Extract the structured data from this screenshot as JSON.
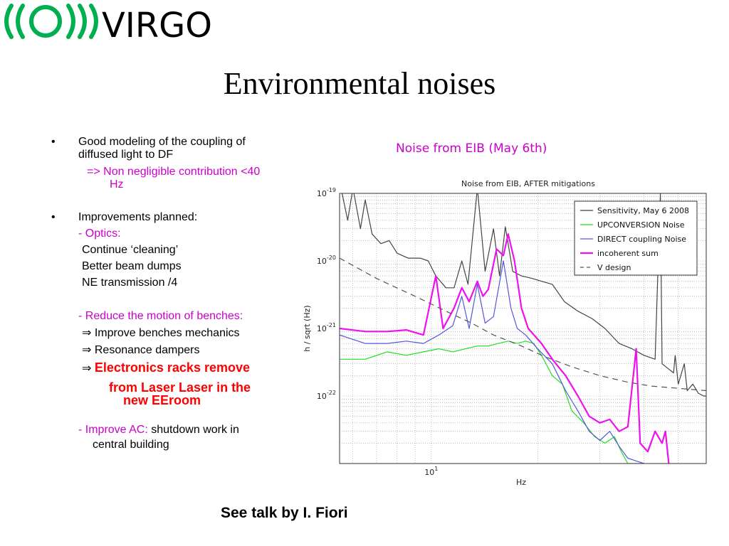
{
  "logo": {
    "text": "VIRGO",
    "color": "#00b050"
  },
  "title": "Environmental noises",
  "bullets": {
    "b1_line1": "Good modeling of  the coupling of",
    "b1_line2": "diffused light to DF",
    "b1_sub1": "=> Non negligible contribution <40",
    "b1_sub2": "Hz",
    "b2": "Improvements planned:",
    "optics": "- Optics:",
    "optics_items": [
      "Continue ‘cleaning’",
      "Better beam dumps",
      "NE transmission /4"
    ],
    "reduce": "- Reduce the motion of benches:",
    "reduce_items": [
      "Improve benches mechanics",
      "Resonance dampers"
    ],
    "arrow": "⇒",
    "red1": "Electronics racks remove",
    "red2": "from Laser Laser in the",
    "red3": "new EEroom",
    "ac_prefix": "-  Improve AC:",
    "ac_rest": " shutdown work in",
    "ac_line2": "central building"
  },
  "chart_caption": "Noise from EIB (May 6th)",
  "footer": "See talk by I. Fiori",
  "chart_data": {
    "type": "line",
    "title": "Noise from EIB, AFTER mitigations",
    "xlabel": "Hz",
    "ylabel": "h / sqrt (Hz)",
    "x_scale": "log",
    "y_scale": "log",
    "xlim": [
      5.5,
      60
    ],
    "ylim": [
      1e-23,
      1e-19
    ],
    "y_ticks": [
      "1e-19",
      "1e-20",
      "1e-21",
      "1e-22"
    ],
    "y_tick_labels": [
      {
        "base": "10",
        "exp": "-19"
      },
      {
        "base": "10",
        "exp": "-20"
      },
      {
        "base": "10",
        "exp": "-21"
      },
      {
        "base": "10",
        "exp": "-22"
      }
    ],
    "x_tick_labels": [
      {
        "base": "10",
        "exp": "1",
        "value": 10
      }
    ],
    "grid": true,
    "legend_position": "top-right",
    "series": [
      {
        "name": "Sensitivity, May 6 2008",
        "color": "#444444",
        "dash": "",
        "points": [
          [
            5.5,
            1.5e-19
          ],
          [
            5.8,
            4e-20
          ],
          [
            6.0,
            1.2e-19
          ],
          [
            6.3,
            3e-20
          ],
          [
            6.5,
            8e-20
          ],
          [
            6.8,
            2.5e-20
          ],
          [
            7.2,
            1.8e-20
          ],
          [
            7.6,
            2e-20
          ],
          [
            8.0,
            1.3e-20
          ],
          [
            8.6,
            1.1e-20
          ],
          [
            9.3,
            1.1e-20
          ],
          [
            9.8,
            1e-20
          ],
          [
            10.3,
            6e-21
          ],
          [
            11.0,
            4e-21
          ],
          [
            11.6,
            4e-21
          ],
          [
            12.2,
            1e-20
          ],
          [
            12.7,
            4.5e-21
          ],
          [
            13.5,
            1.2e-19
          ],
          [
            14.2,
            7e-21
          ],
          [
            15.0,
            3e-20
          ],
          [
            15.6,
            6e-21
          ],
          [
            16.2,
            3.2e-20
          ],
          [
            17.0,
            7e-21
          ],
          [
            18.0,
            6e-21
          ],
          [
            19.3,
            5.5e-21
          ],
          [
            20.5,
            5e-21
          ],
          [
            22.0,
            4.5e-21
          ],
          [
            23.8,
            2.5e-21
          ],
          [
            26.0,
            1.8e-21
          ],
          [
            28.5,
            1.4e-21
          ],
          [
            31.0,
            1e-21
          ],
          [
            34.0,
            6e-22
          ],
          [
            37.0,
            5e-22
          ],
          [
            40.0,
            4e-22
          ],
          [
            43.0,
            3.5e-22
          ],
          [
            44.5,
            1e-19
          ],
          [
            45.0,
            3e-22
          ],
          [
            47.0,
            2.5e-22
          ],
          [
            48.5,
            2.2e-22
          ],
          [
            49.0,
            4e-22
          ],
          [
            50.0,
            1.5e-22
          ],
          [
            52.0,
            3e-22
          ],
          [
            53.0,
            1.2e-22
          ],
          [
            55.0,
            1.5e-22
          ],
          [
            57.0,
            1.1e-22
          ],
          [
            59.0,
            1e-22
          ],
          [
            60.0,
            1e-22
          ]
        ]
      },
      {
        "name": "UPCONVERSION Noise",
        "color": "#22dd22",
        "dash": "",
        "points": [
          [
            5.5,
            3.5e-22
          ],
          [
            6.5,
            3.5e-22
          ],
          [
            7.5,
            4.5e-22
          ],
          [
            8.5,
            4e-22
          ],
          [
            9.5,
            4.5e-22
          ],
          [
            10.5,
            5e-22
          ],
          [
            11.5,
            4.5e-22
          ],
          [
            12.5,
            5e-22
          ],
          [
            13.5,
            5.5e-22
          ],
          [
            14.5,
            5.5e-22
          ],
          [
            15.5,
            6e-22
          ],
          [
            16.5,
            6.5e-22
          ],
          [
            17.5,
            6e-22
          ],
          [
            18.5,
            6.5e-22
          ],
          [
            19.5,
            6e-22
          ],
          [
            20.5,
            4e-22
          ],
          [
            22.0,
            2e-22
          ],
          [
            23.5,
            1.5e-22
          ],
          [
            25.0,
            6e-23
          ],
          [
            27.0,
            4e-23
          ],
          [
            29.0,
            2.5e-23
          ],
          [
            31.0,
            2e-23
          ],
          [
            33.0,
            2.5e-23
          ],
          [
            34.5,
            1.5e-23
          ],
          [
            36.0,
            1e-23
          ],
          [
            40.0,
            1e-23
          ]
        ]
      },
      {
        "name": "DIRECT coupling Noise",
        "color": "#5555dd",
        "dash": "",
        "points": [
          [
            5.5,
            8e-22
          ],
          [
            6.5,
            6e-22
          ],
          [
            7.5,
            6e-22
          ],
          [
            8.5,
            6.5e-22
          ],
          [
            9.5,
            6e-22
          ],
          [
            10.5,
            8e-22
          ],
          [
            11.5,
            1.1e-21
          ],
          [
            12.2,
            3e-21
          ],
          [
            12.8,
            1e-21
          ],
          [
            13.5,
            4.5e-21
          ],
          [
            14.2,
            1.2e-21
          ],
          [
            15.0,
            1.5e-21
          ],
          [
            16.0,
            1e-20
          ],
          [
            16.8,
            2e-21
          ],
          [
            17.5,
            1e-21
          ],
          [
            18.5,
            8e-22
          ],
          [
            20.0,
            5e-22
          ],
          [
            22.0,
            3e-22
          ],
          [
            24.0,
            1.2e-22
          ],
          [
            26.0,
            6e-23
          ],
          [
            28.0,
            3e-23
          ],
          [
            30.0,
            2.2e-23
          ],
          [
            32.0,
            3e-23
          ],
          [
            34.0,
            1.8e-23
          ],
          [
            36.0,
            1.2e-23
          ],
          [
            40.0,
            1e-23
          ]
        ]
      },
      {
        "name": "incoherent sum",
        "color": "#ee11ee",
        "dash": "",
        "points": [
          [
            5.5,
            1e-21
          ],
          [
            6.5,
            9e-22
          ],
          [
            7.5,
            9e-22
          ],
          [
            8.5,
            9.5e-22
          ],
          [
            9.5,
            8e-22
          ],
          [
            10.3,
            6e-21
          ],
          [
            10.8,
            1e-21
          ],
          [
            11.6,
            2e-21
          ],
          [
            12.2,
            4e-21
          ],
          [
            12.8,
            2.5e-21
          ],
          [
            13.5,
            5e-21
          ],
          [
            14.0,
            3e-21
          ],
          [
            14.5,
            3.8e-21
          ],
          [
            15.3,
            1.5e-20
          ],
          [
            16.0,
            1.2e-20
          ],
          [
            16.5,
            2.5e-20
          ],
          [
            17.2,
            1e-20
          ],
          [
            18.0,
            2e-21
          ],
          [
            18.8,
            1e-21
          ],
          [
            20.5,
            6e-22
          ],
          [
            22.0,
            3.5e-22
          ],
          [
            24.0,
            2e-22
          ],
          [
            26.0,
            1e-22
          ],
          [
            28.0,
            5e-23
          ],
          [
            30.0,
            4e-23
          ],
          [
            32.0,
            4.5e-23
          ],
          [
            34.0,
            3e-23
          ],
          [
            36.0,
            3.5e-23
          ],
          [
            38.0,
            5e-22
          ],
          [
            39.0,
            2e-23
          ],
          [
            41.0,
            1.5e-23
          ],
          [
            43.0,
            3e-23
          ],
          [
            45.0,
            2e-23
          ],
          [
            46.0,
            3e-23
          ],
          [
            47.0,
            1e-23
          ]
        ]
      },
      {
        "name": "V design",
        "color": "#555555",
        "dash": "8,6",
        "points": [
          [
            5.5,
            1.1e-20
          ],
          [
            7.0,
            5.5e-21
          ],
          [
            9.0,
            3e-21
          ],
          [
            11.0,
            1.8e-21
          ],
          [
            13.0,
            1.2e-21
          ],
          [
            15.0,
            8e-22
          ],
          [
            18.0,
            5.5e-22
          ],
          [
            21.0,
            3.8e-22
          ],
          [
            25.0,
            2.7e-22
          ],
          [
            30.0,
            2e-22
          ],
          [
            36.0,
            1.6e-22
          ],
          [
            42.0,
            1.4e-22
          ],
          [
            50.0,
            1.3e-22
          ],
          [
            60.0,
            1.2e-22
          ]
        ]
      }
    ]
  }
}
